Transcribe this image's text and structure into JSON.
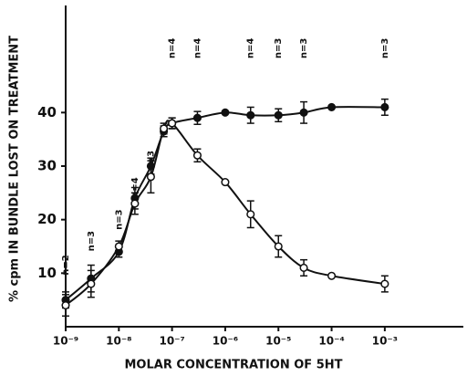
{
  "chart_data": {
    "type": "line",
    "xlabel": "MOLAR CONCENTRATION OF 5HT",
    "ylabel": "% cpm IN BUNDLE LOST ON TREATMENT",
    "xscale": "log",
    "xlim": [
      1e-09,
      0.03
    ],
    "ylim": [
      0,
      60
    ],
    "xticks": [
      {
        "value": 1e-09,
        "label": "10⁻⁹"
      },
      {
        "value": 1e-08,
        "label": "10⁻⁸"
      },
      {
        "value": 1e-07,
        "label": "10⁻⁷"
      },
      {
        "value": 1e-06,
        "label": "10⁻⁶"
      },
      {
        "value": 1e-05,
        "label": "10⁻⁵"
      },
      {
        "value": 0.0001,
        "label": "10⁻⁴"
      },
      {
        "value": 0.001,
        "label": "10⁻³"
      }
    ],
    "yticks": [
      10,
      20,
      30,
      40
    ],
    "x": [
      1e-09,
      3e-09,
      1e-08,
      2e-08,
      4e-08,
      7e-08,
      1e-07,
      3e-07,
      1e-06,
      3e-06,
      1e-05,
      3e-05,
      0.0001,
      0.001
    ],
    "series": [
      {
        "marker": "filled",
        "color": "#111111",
        "values": [
          5,
          9,
          14,
          24,
          30,
          36.5,
          38,
          39,
          40,
          39.5,
          39.5,
          40,
          41,
          41
        ],
        "errors": [
          1.5,
          2.5,
          1,
          2,
          1.5,
          1,
          1,
          1.2,
          null,
          1.5,
          1.2,
          2,
          null,
          1.5
        ]
      },
      {
        "marker": "open",
        "color": "#111111",
        "values": [
          4,
          8,
          15,
          23,
          28,
          37,
          38,
          32,
          27,
          21,
          15,
          11,
          9.5,
          8
        ],
        "errors": [
          2,
          2.5,
          1,
          2,
          3,
          1,
          1,
          1.2,
          null,
          2.5,
          2,
          1.5,
          null,
          1.5
        ]
      }
    ],
    "annotations": [
      {
        "text": "n=2",
        "x": 1e-09,
        "y": 11.5
      },
      {
        "text": "n=3",
        "x": 3e-09,
        "y": 16
      },
      {
        "text": "n=3",
        "x": 1e-08,
        "y": 20
      },
      {
        "text": "n=4",
        "x": 2e-08,
        "y": 26
      },
      {
        "text": "n=3",
        "x": 4e-08,
        "y": 31
      },
      {
        "text": "n=4",
        "x": 1e-07,
        "y": 52
      },
      {
        "text": "n=4",
        "x": 3e-07,
        "y": 52
      },
      {
        "text": "n=4",
        "x": 3e-06,
        "y": 52
      },
      {
        "text": "n=3",
        "x": 1e-05,
        "y": 52
      },
      {
        "text": "n=3",
        "x": 3e-05,
        "y": 52
      },
      {
        "text": "n=3",
        "x": 0.001,
        "y": 52
      }
    ]
  }
}
